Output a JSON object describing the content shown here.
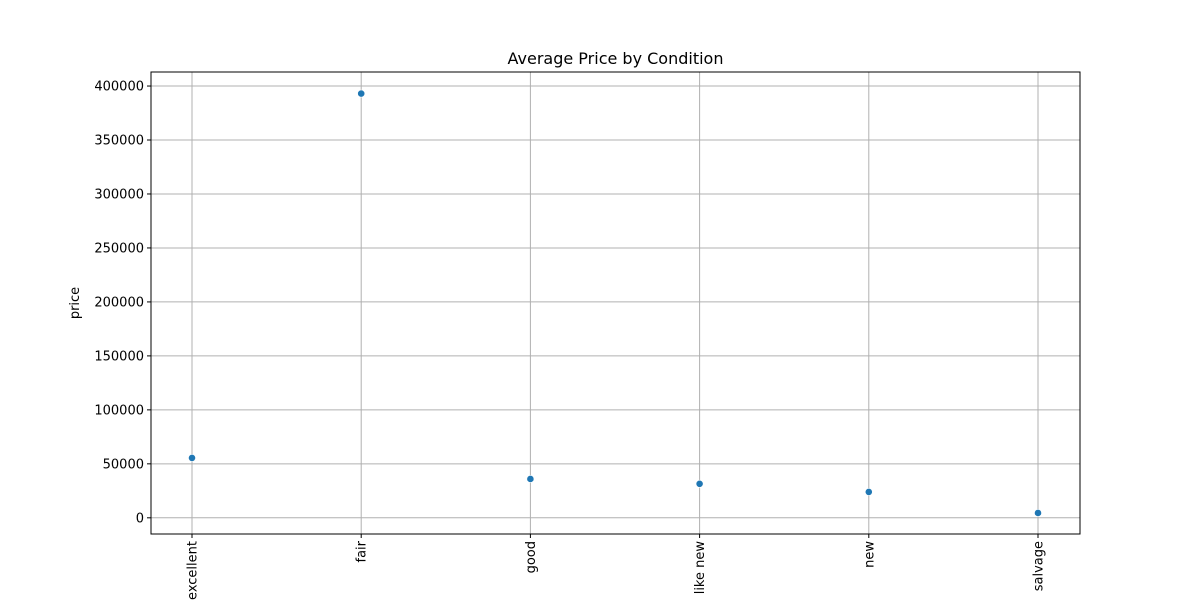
{
  "chart_data": {
    "type": "scatter",
    "title": "Average Price by Condition",
    "xlabel": "",
    "ylabel": "price",
    "categories": [
      "excellent",
      "fair",
      "good",
      "like new",
      "new",
      "salvage"
    ],
    "values": [
      55500,
      393000,
      36000,
      31500,
      24000,
      4500
    ],
    "ylim": [
      -15000,
      413000
    ],
    "yticks": [
      0,
      50000,
      100000,
      150000,
      200000,
      250000,
      300000,
      350000,
      400000
    ],
    "ytick_labels": [
      "0",
      "50000",
      "100000",
      "150000",
      "200000",
      "250000",
      "300000",
      "350000",
      "400000"
    ],
    "grid": true,
    "point_color": "#1f77b4",
    "grid_color": "#b0b0b0"
  }
}
